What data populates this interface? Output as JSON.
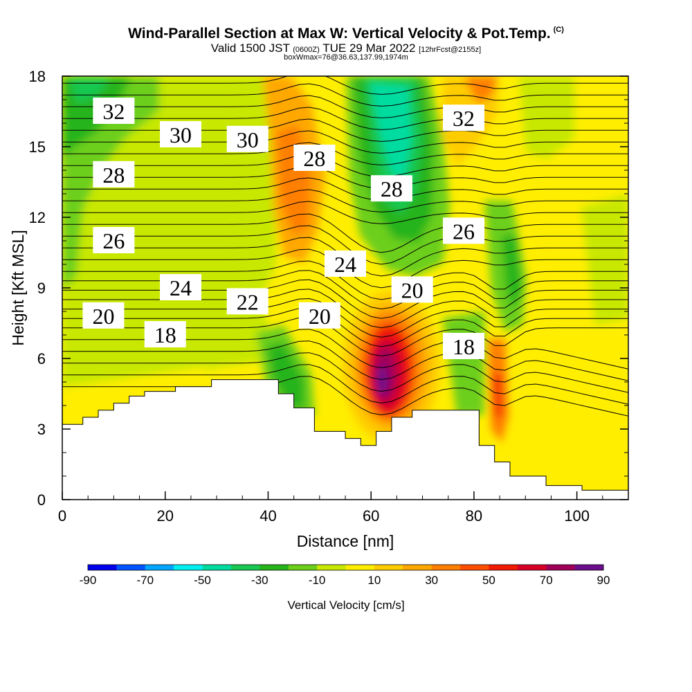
{
  "header": {
    "title": "Wind-Parallel Section at Max W: Vertical Velocity & Pot.Temp.",
    "title_mark": "(C)",
    "valid_prefix": "Valid 1500 JST",
    "valid_utc": "(0600Z)",
    "valid_date": "TUE 29 Mar 2022",
    "forecast": "[12hrFcst@2155z]",
    "box_info": "boxWmax=76@36.63,137.99,1974m"
  },
  "chart_data": {
    "type": "heatmap",
    "xlabel": "Distance [nm]",
    "ylabel": "Height [Kft MSL]",
    "xlim": [
      0,
      110
    ],
    "ylim": [
      0,
      18
    ],
    "x_ticks": [
      0,
      20,
      40,
      60,
      80,
      100
    ],
    "y_ticks": [
      0,
      3,
      6,
      9,
      12,
      15,
      18
    ],
    "colorbar": {
      "label": "Vertical Velocity [cm/s]",
      "levels": [
        -90,
        -80,
        -70,
        -60,
        -50,
        -40,
        -30,
        -20,
        -10,
        0,
        10,
        20,
        30,
        40,
        50,
        60,
        70,
        80,
        90
      ],
      "tick_labels": [
        "-90",
        "-70",
        "-50",
        "-30",
        "-10",
        "10",
        "30",
        "50",
        "70",
        "90"
      ],
      "colors": [
        "#0000ee",
        "#0055ff",
        "#00a6ff",
        "#00f0f0",
        "#00dca0",
        "#18c850",
        "#27b41a",
        "#6ccf1a",
        "#c8e800",
        "#ffee00",
        "#ffcc00",
        "#ffa800",
        "#ff7f00",
        "#ff4e00",
        "#f21a00",
        "#d90028",
        "#a0005a",
        "#6a0e8c"
      ]
    },
    "terrain_kft": [
      [
        0,
        3.2
      ],
      [
        4,
        3.2
      ],
      [
        4,
        3.5
      ],
      [
        7,
        3.5
      ],
      [
        7,
        3.8
      ],
      [
        10,
        3.8
      ],
      [
        10,
        4.1
      ],
      [
        13,
        4.1
      ],
      [
        13,
        4.4
      ],
      [
        16,
        4.4
      ],
      [
        16,
        4.6
      ],
      [
        22,
        4.6
      ],
      [
        22,
        4.8
      ],
      [
        29,
        4.8
      ],
      [
        29,
        5.1
      ],
      [
        42,
        5.1
      ],
      [
        42,
        4.5
      ],
      [
        45,
        4.5
      ],
      [
        45,
        3.9
      ],
      [
        49,
        3.9
      ],
      [
        49,
        2.9
      ],
      [
        55,
        2.9
      ],
      [
        55,
        2.6
      ],
      [
        58,
        2.6
      ],
      [
        58,
        2.3
      ],
      [
        61,
        2.3
      ],
      [
        61,
        2.9
      ],
      [
        64,
        2.9
      ],
      [
        64,
        3.5
      ],
      [
        68,
        3.5
      ],
      [
        68,
        3.8
      ],
      [
        81,
        3.8
      ],
      [
        81,
        2.3
      ],
      [
        84,
        2.3
      ],
      [
        84,
        1.6
      ],
      [
        87,
        1.6
      ],
      [
        87,
        1.0
      ],
      [
        94,
        1.0
      ],
      [
        94,
        0.6
      ],
      [
        101,
        0.6
      ],
      [
        101,
        0.4
      ],
      [
        110,
        0.4
      ]
    ],
    "isentrope_labels": [
      {
        "text": "32",
        "x": 10,
        "y": 16.5
      },
      {
        "text": "30",
        "x": 23,
        "y": 15.5
      },
      {
        "text": "30",
        "x": 36,
        "y": 15.3
      },
      {
        "text": "28",
        "x": 49,
        "y": 14.5
      },
      {
        "text": "32",
        "x": 78,
        "y": 16.2
      },
      {
        "text": "28",
        "x": 10,
        "y": 13.8
      },
      {
        "text": "28",
        "x": 64,
        "y": 13.2
      },
      {
        "text": "26",
        "x": 10,
        "y": 11.0
      },
      {
        "text": "26",
        "x": 78,
        "y": 11.4
      },
      {
        "text": "24",
        "x": 55,
        "y": 10.0
      },
      {
        "text": "24",
        "x": 23,
        "y": 9.0
      },
      {
        "text": "22",
        "x": 36,
        "y": 8.4
      },
      {
        "text": "20",
        "x": 8,
        "y": 7.8
      },
      {
        "text": "20",
        "x": 50,
        "y": 7.8
      },
      {
        "text": "20",
        "x": 68,
        "y": 8.9
      },
      {
        "text": "18",
        "x": 20,
        "y": 7.0
      },
      {
        "text": "18",
        "x": 78,
        "y": 6.5
      }
    ]
  }
}
